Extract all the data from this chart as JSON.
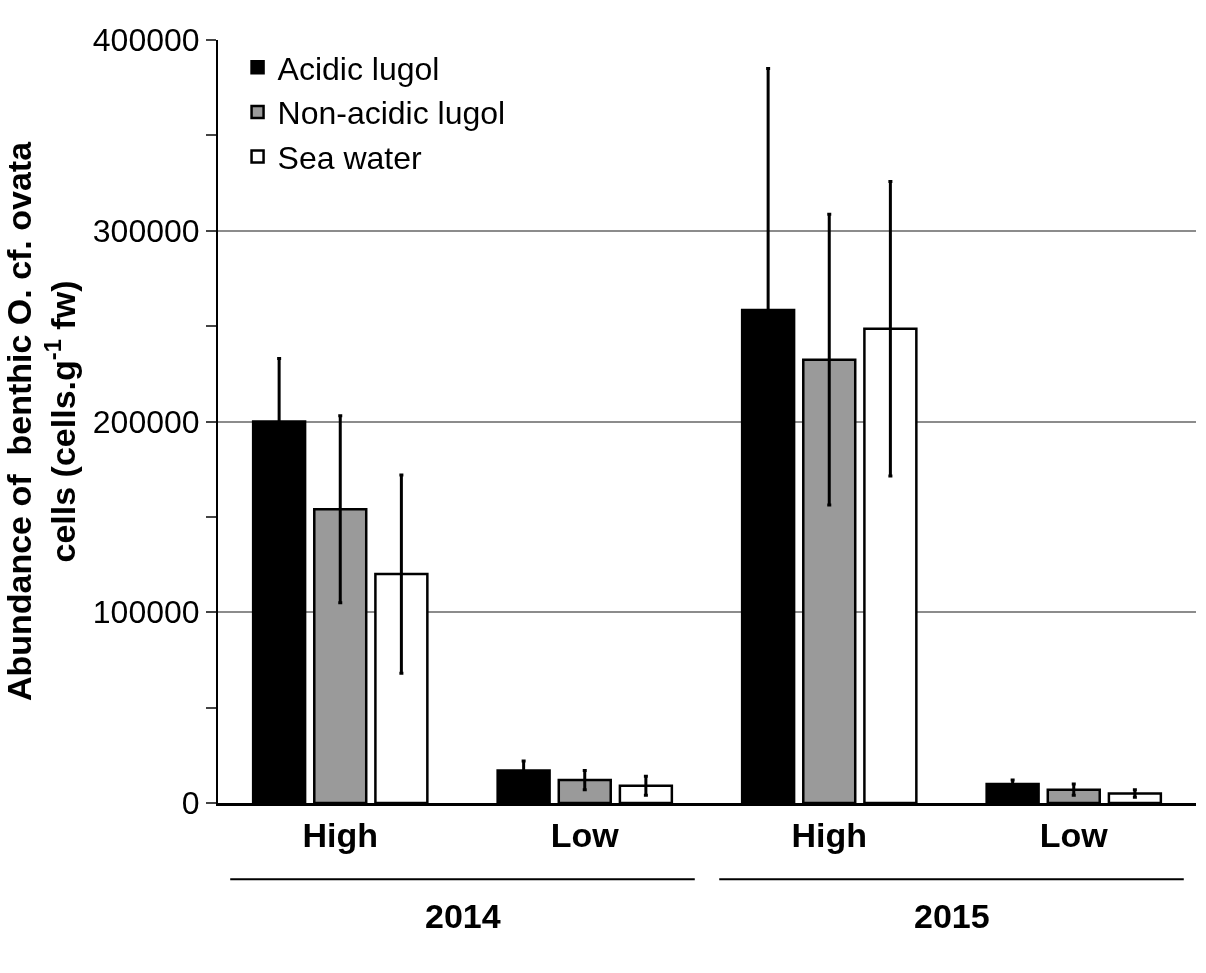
{
  "chart_data": {
    "type": "bar",
    "ylabel": "Abundance of  benthic O. cf. ovata\ncells (cells.g$^{-1}$ fw)",
    "categories": [
      "High",
      "Low",
      "High",
      "Low"
    ],
    "series": [
      {
        "name": "Acidic lugol",
        "color": "#000000",
        "values": [
          200000,
          17000,
          258500,
          10000
        ],
        "errors": [
          33000,
          5000,
          126500,
          2000
        ]
      },
      {
        "name": "Non-acidic lugol",
        "color": "#9a9a9a",
        "values": [
          154000,
          12000,
          232400,
          7000
        ],
        "errors": [
          49000,
          5000,
          76200,
          3000
        ]
      },
      {
        "name": "Sea water",
        "color": "#ffffff",
        "values": [
          120000,
          9000,
          248600,
          5000
        ],
        "errors": [
          52000,
          5000,
          77200,
          2000
        ]
      }
    ],
    "annotations": [
      "2014",
      "2015"
    ],
    "ylim": [
      0,
      400000
    ],
    "yticks": [
      0,
      100000,
      200000,
      300000,
      400000
    ],
    "grid": "y",
    "legend": "top left"
  }
}
